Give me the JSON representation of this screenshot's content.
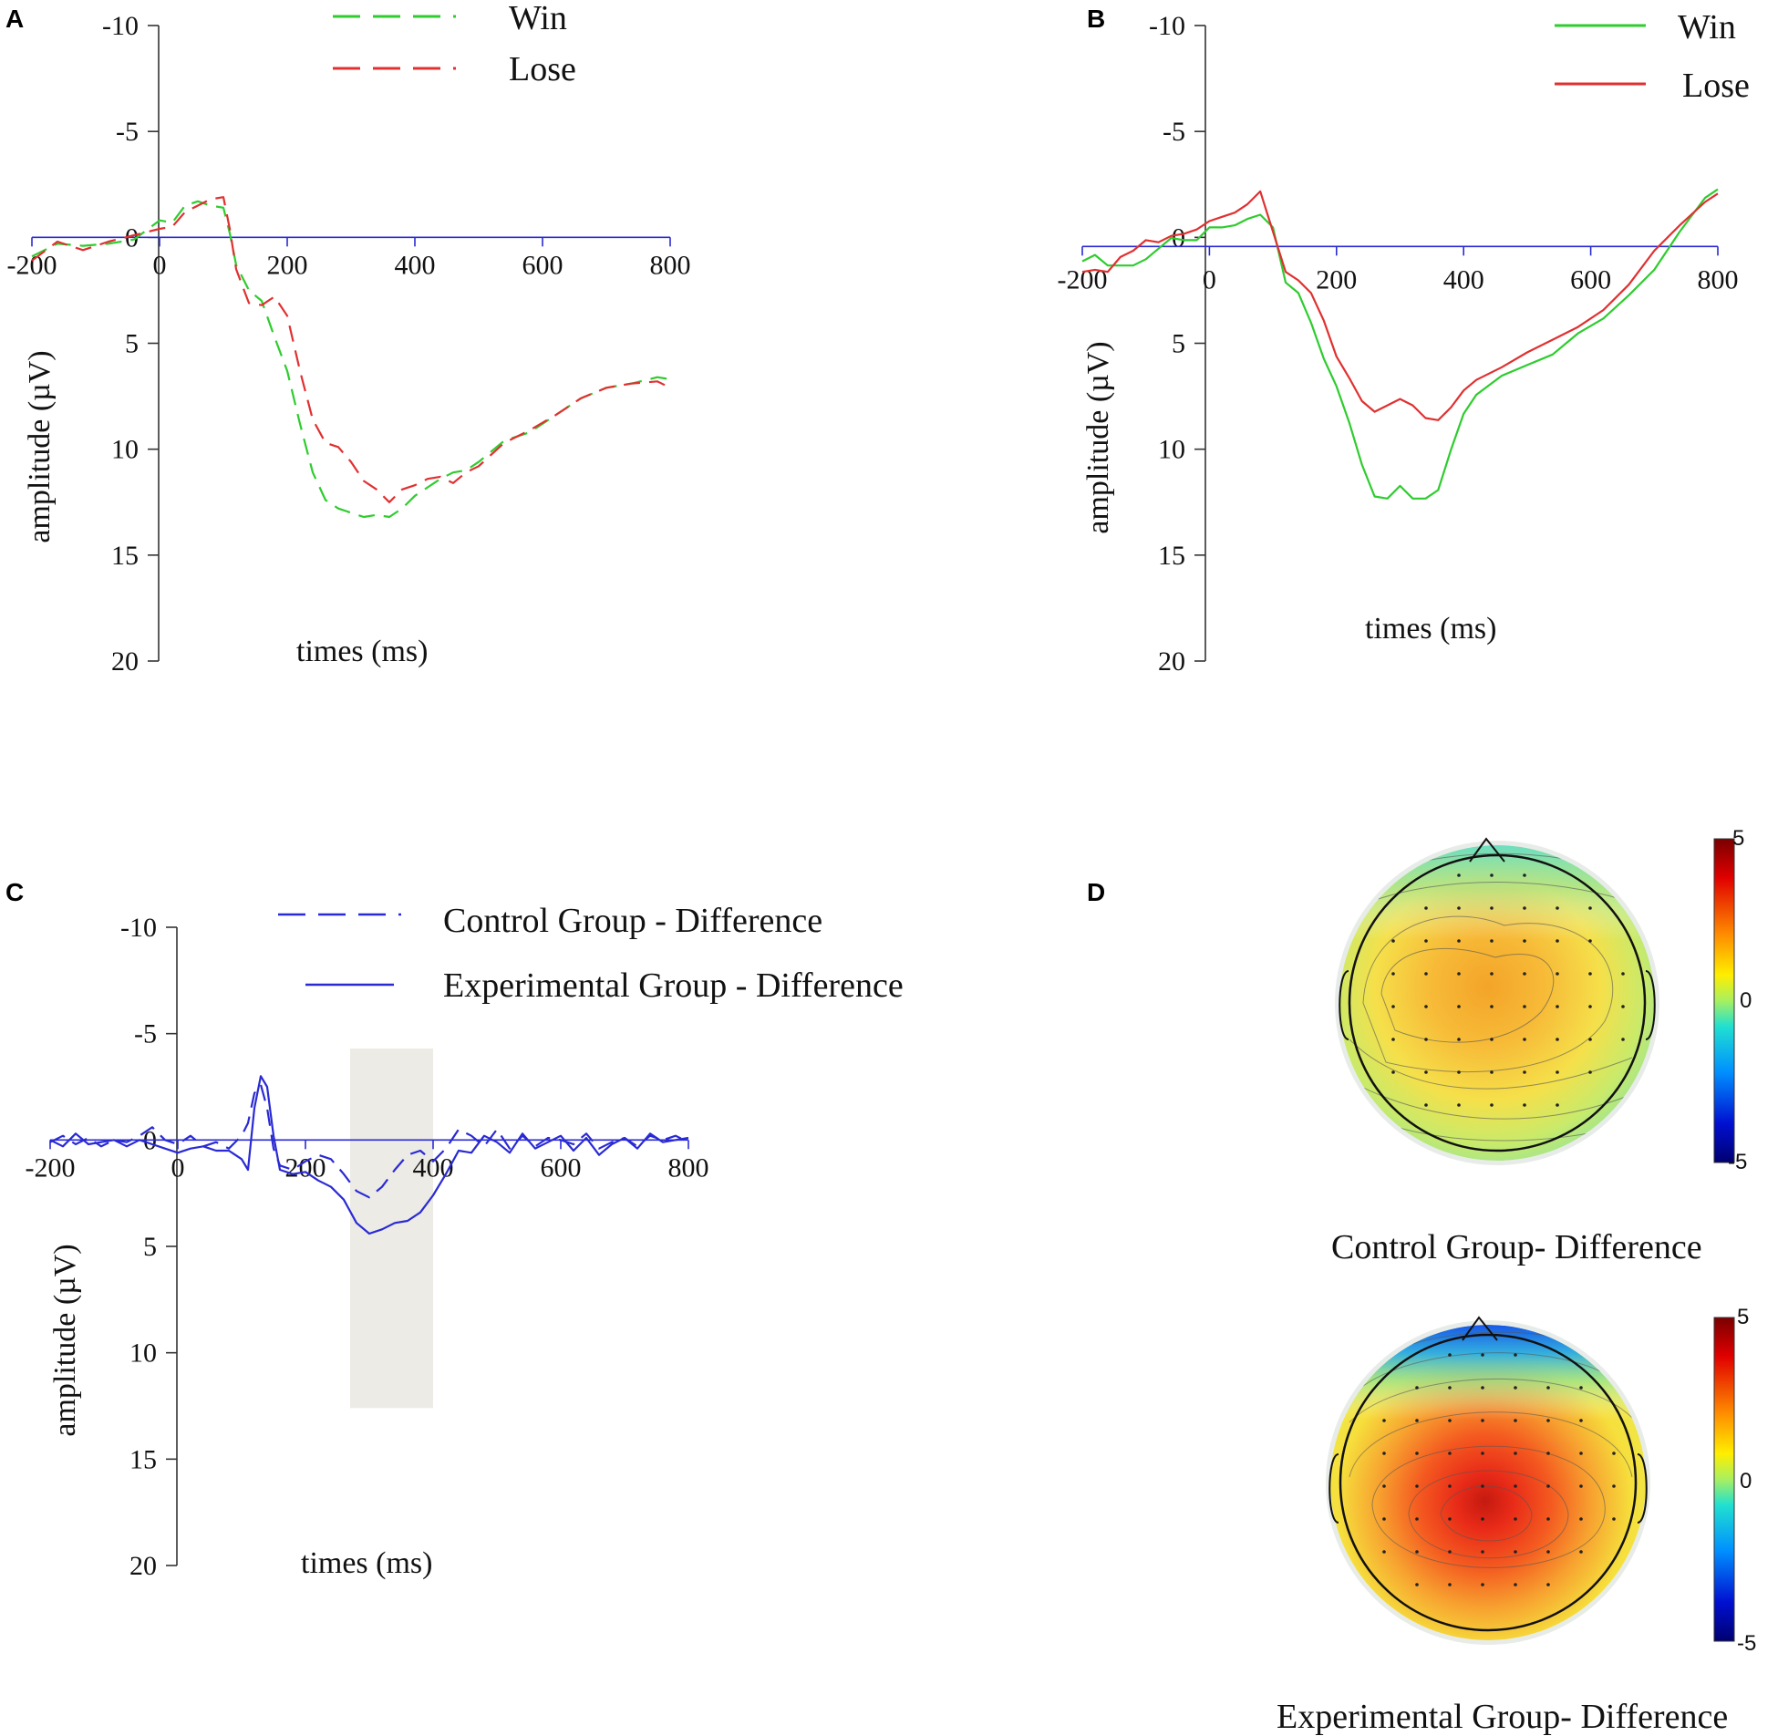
{
  "chart_data": [
    {
      "panel": "A",
      "type": "line",
      "xlabel": "times (ms)",
      "ylabel": "amplitude (µV)",
      "xlim": [
        -200,
        800
      ],
      "ylim": [
        -10,
        20
      ],
      "y_inverted": true,
      "x_ticks": [
        -200,
        0,
        200,
        400,
        600,
        800
      ],
      "y_ticks": [
        -10,
        -5,
        0,
        5,
        10,
        15,
        20
      ],
      "legend": [
        "Win",
        "Lose"
      ],
      "series": [
        {
          "name": "Win",
          "color": "#2ecc2e",
          "dash": "dashed",
          "x": [
            -200,
            -160,
            -120,
            -80,
            -40,
            0,
            20,
            40,
            60,
            80,
            100,
            110,
            120,
            140,
            160,
            180,
            200,
            220,
            240,
            260,
            280,
            300,
            320,
            340,
            360,
            380,
            400,
            420,
            440,
            460,
            480,
            500,
            540,
            580,
            620,
            660,
            700,
            740,
            780,
            800
          ],
          "y": [
            0.9,
            0.3,
            0.4,
            0.3,
            0.1,
            -0.8,
            -0.7,
            -1.5,
            -1.7,
            -1.5,
            -1.4,
            -0.2,
            1.3,
            2.5,
            3.0,
            4.7,
            6.3,
            8.8,
            11.1,
            12.4,
            12.8,
            13.0,
            13.2,
            13.1,
            13.2,
            12.8,
            12.2,
            11.8,
            11.4,
            11.1,
            11.0,
            10.6,
            9.6,
            9.2,
            8.4,
            7.6,
            7.1,
            6.9,
            6.6,
            6.7
          ]
        },
        {
          "name": "Lose",
          "color": "#e03030",
          "dash": "dashed",
          "x": [
            -200,
            -160,
            -120,
            -80,
            -40,
            0,
            20,
            40,
            60,
            80,
            100,
            110,
            120,
            140,
            160,
            180,
            200,
            220,
            240,
            260,
            280,
            300,
            320,
            340,
            360,
            380,
            400,
            420,
            440,
            460,
            480,
            500,
            540,
            580,
            620,
            660,
            700,
            740,
            780,
            800
          ],
          "y": [
            1.1,
            0.2,
            0.6,
            0.2,
            -0.1,
            -0.4,
            -0.5,
            -1.2,
            -1.5,
            -1.8,
            -1.9,
            -0.4,
            1.5,
            3.1,
            3.2,
            2.8,
            3.7,
            6.3,
            8.6,
            9.7,
            9.9,
            10.6,
            11.5,
            11.9,
            12.5,
            11.9,
            11.7,
            11.4,
            11.3,
            11.6,
            11.1,
            10.8,
            9.7,
            9.1,
            8.4,
            7.6,
            7.1,
            6.9,
            6.8,
            7.1
          ]
        }
      ]
    },
    {
      "panel": "B",
      "type": "line",
      "xlabel": "times (ms)",
      "ylabel": "amplitude (µV)",
      "xlim": [
        -200,
        800
      ],
      "ylim": [
        -10,
        20
      ],
      "y_inverted": true,
      "x_ticks": [
        -200,
        0,
        200,
        400,
        600,
        800
      ],
      "y_ticks": [
        -10,
        -5,
        0,
        5,
        10,
        15,
        20
      ],
      "legend": [
        "Win",
        "Lose"
      ],
      "series": [
        {
          "name": "Win",
          "color": "#2ecc2e",
          "dash": "solid",
          "x": [
            -200,
            -180,
            -160,
            -140,
            -120,
            -100,
            -80,
            -60,
            -40,
            -20,
            0,
            20,
            40,
            60,
            80,
            100,
            120,
            140,
            160,
            180,
            200,
            220,
            240,
            260,
            280,
            300,
            320,
            340,
            360,
            380,
            400,
            420,
            460,
            500,
            540,
            580,
            620,
            660,
            700,
            740,
            780,
            800
          ],
          "y": [
            0.7,
            0.4,
            0.9,
            0.9,
            0.9,
            0.6,
            0.1,
            -0.4,
            -0.3,
            -0.3,
            -0.9,
            -0.9,
            -1.0,
            -1.3,
            -1.5,
            -0.9,
            1.7,
            2.2,
            3.6,
            5.3,
            6.6,
            8.3,
            10.3,
            11.8,
            11.9,
            11.3,
            11.9,
            11.9,
            11.5,
            9.6,
            7.9,
            7.0,
            6.1,
            5.6,
            5.1,
            4.1,
            3.4,
            2.3,
            1.1,
            -0.7,
            -2.3,
            -2.7
          ]
        },
        {
          "name": "Lose",
          "color": "#e03030",
          "dash": "solid",
          "x": [
            -200,
            -180,
            -160,
            -140,
            -120,
            -100,
            -80,
            -60,
            -40,
            -20,
            0,
            20,
            40,
            60,
            80,
            100,
            120,
            140,
            160,
            180,
            200,
            220,
            240,
            260,
            280,
            300,
            320,
            340,
            360,
            380,
            400,
            420,
            460,
            500,
            540,
            580,
            620,
            660,
            700,
            740,
            780,
            800
          ],
          "y": [
            1.2,
            1.1,
            1.2,
            0.5,
            0.2,
            -0.3,
            -0.2,
            -0.5,
            -0.6,
            -0.8,
            -1.2,
            -1.4,
            -1.6,
            -2.0,
            -2.6,
            -0.7,
            1.2,
            1.6,
            2.2,
            3.5,
            5.2,
            6.2,
            7.3,
            7.8,
            7.5,
            7.2,
            7.5,
            8.1,
            8.2,
            7.6,
            6.8,
            6.3,
            5.7,
            5.0,
            4.4,
            3.8,
            3.0,
            1.8,
            0.2,
            -1.0,
            -2.1,
            -2.5
          ]
        }
      ]
    },
    {
      "panel": "C",
      "type": "line",
      "xlabel": "times (ms)",
      "ylabel": "amplitude (µV)",
      "xlim": [
        -200,
        800
      ],
      "ylim": [
        -10,
        20
      ],
      "y_inverted": true,
      "x_ticks": [
        -200,
        0,
        200,
        400,
        600,
        800
      ],
      "y_ticks": [
        -10,
        -5,
        0,
        5,
        10,
        15,
        20
      ],
      "legend": [
        "Control Group - Difference",
        "Experimental Group - Difference"
      ],
      "highlight_window_ms": [
        270,
        400
      ],
      "highlight_amplitude": [
        -4.3,
        12.6
      ],
      "series": [
        {
          "name": "Control Group - Difference",
          "color": "#2a2ad4",
          "dash": "dashed",
          "x": [
            -200,
            -180,
            -160,
            -140,
            -120,
            -100,
            -80,
            -60,
            -40,
            -20,
            0,
            20,
            40,
            60,
            80,
            100,
            110,
            120,
            130,
            140,
            150,
            160,
            180,
            200,
            220,
            240,
            260,
            280,
            300,
            320,
            340,
            360,
            380,
            400,
            420,
            440,
            460,
            480,
            500,
            520,
            540,
            560,
            580,
            600,
            620,
            640,
            660,
            680,
            700,
            720,
            740,
            760,
            780,
            800
          ],
          "y": [
            0.1,
            -0.2,
            0.2,
            -0.1,
            0.3,
            0.0,
            0.1,
            -0.2,
            -0.6,
            0.0,
            0.2,
            -0.2,
            0.3,
            0.1,
            0.4,
            -0.2,
            -0.8,
            -2.2,
            -2.6,
            -1.5,
            0.4,
            1.2,
            1.4,
            1.0,
            0.7,
            0.9,
            1.6,
            2.4,
            2.7,
            2.2,
            1.4,
            0.7,
            0.5,
            1.0,
            0.4,
            -0.5,
            -0.2,
            0.3,
            -0.5,
            0.4,
            -0.2,
            0.3,
            -0.1,
            0.0,
            0.2,
            -0.3,
            0.4,
            0.1,
            -0.1,
            0.3,
            -0.2,
            0.0,
            -0.2,
            0.1
          ]
        },
        {
          "name": "Experimental Group - Difference",
          "color": "#2a2ad4",
          "dash": "solid",
          "x": [
            -200,
            -180,
            -160,
            -140,
            -120,
            -100,
            -80,
            -60,
            -40,
            -20,
            0,
            20,
            40,
            60,
            80,
            100,
            110,
            120,
            130,
            140,
            150,
            160,
            180,
            200,
            220,
            240,
            260,
            280,
            300,
            320,
            340,
            360,
            380,
            400,
            420,
            440,
            460,
            480,
            500,
            520,
            540,
            560,
            580,
            600,
            620,
            640,
            660,
            680,
            700,
            720,
            740,
            760,
            780,
            800
          ],
          "y": [
            0.0,
            0.3,
            -0.3,
            0.2,
            0.1,
            0.0,
            0.3,
            0.0,
            0.2,
            0.4,
            0.6,
            0.4,
            0.3,
            0.5,
            0.5,
            0.9,
            1.4,
            -1.5,
            -3.0,
            -2.5,
            -0.2,
            1.4,
            1.6,
            1.5,
            1.9,
            2.2,
            2.8,
            3.9,
            4.4,
            4.2,
            3.9,
            3.8,
            3.4,
            2.6,
            1.6,
            0.5,
            0.6,
            -0.2,
            0.1,
            0.6,
            -0.3,
            0.4,
            0.1,
            -0.2,
            0.5,
            -0.1,
            0.7,
            0.2,
            -0.1,
            0.4,
            -0.3,
            0.1,
            0.0,
            -0.1
          ]
        }
      ]
    },
    {
      "panel": "D",
      "type": "heatmap",
      "subtype": "topographic map",
      "colorbar_range": [
        -5,
        5
      ],
      "colorbar_ticks": [
        5,
        0,
        -5
      ],
      "maps": [
        {
          "title": "Control Group- Difference",
          "central_peak": 2.2,
          "frontal_value": 0.0,
          "lateral_value": 0.8
        },
        {
          "title": "Experimental Group- Difference",
          "central_peak": 3.9,
          "frontal_value": -1.8,
          "lateral_value": 1.2
        }
      ]
    }
  ]
}
